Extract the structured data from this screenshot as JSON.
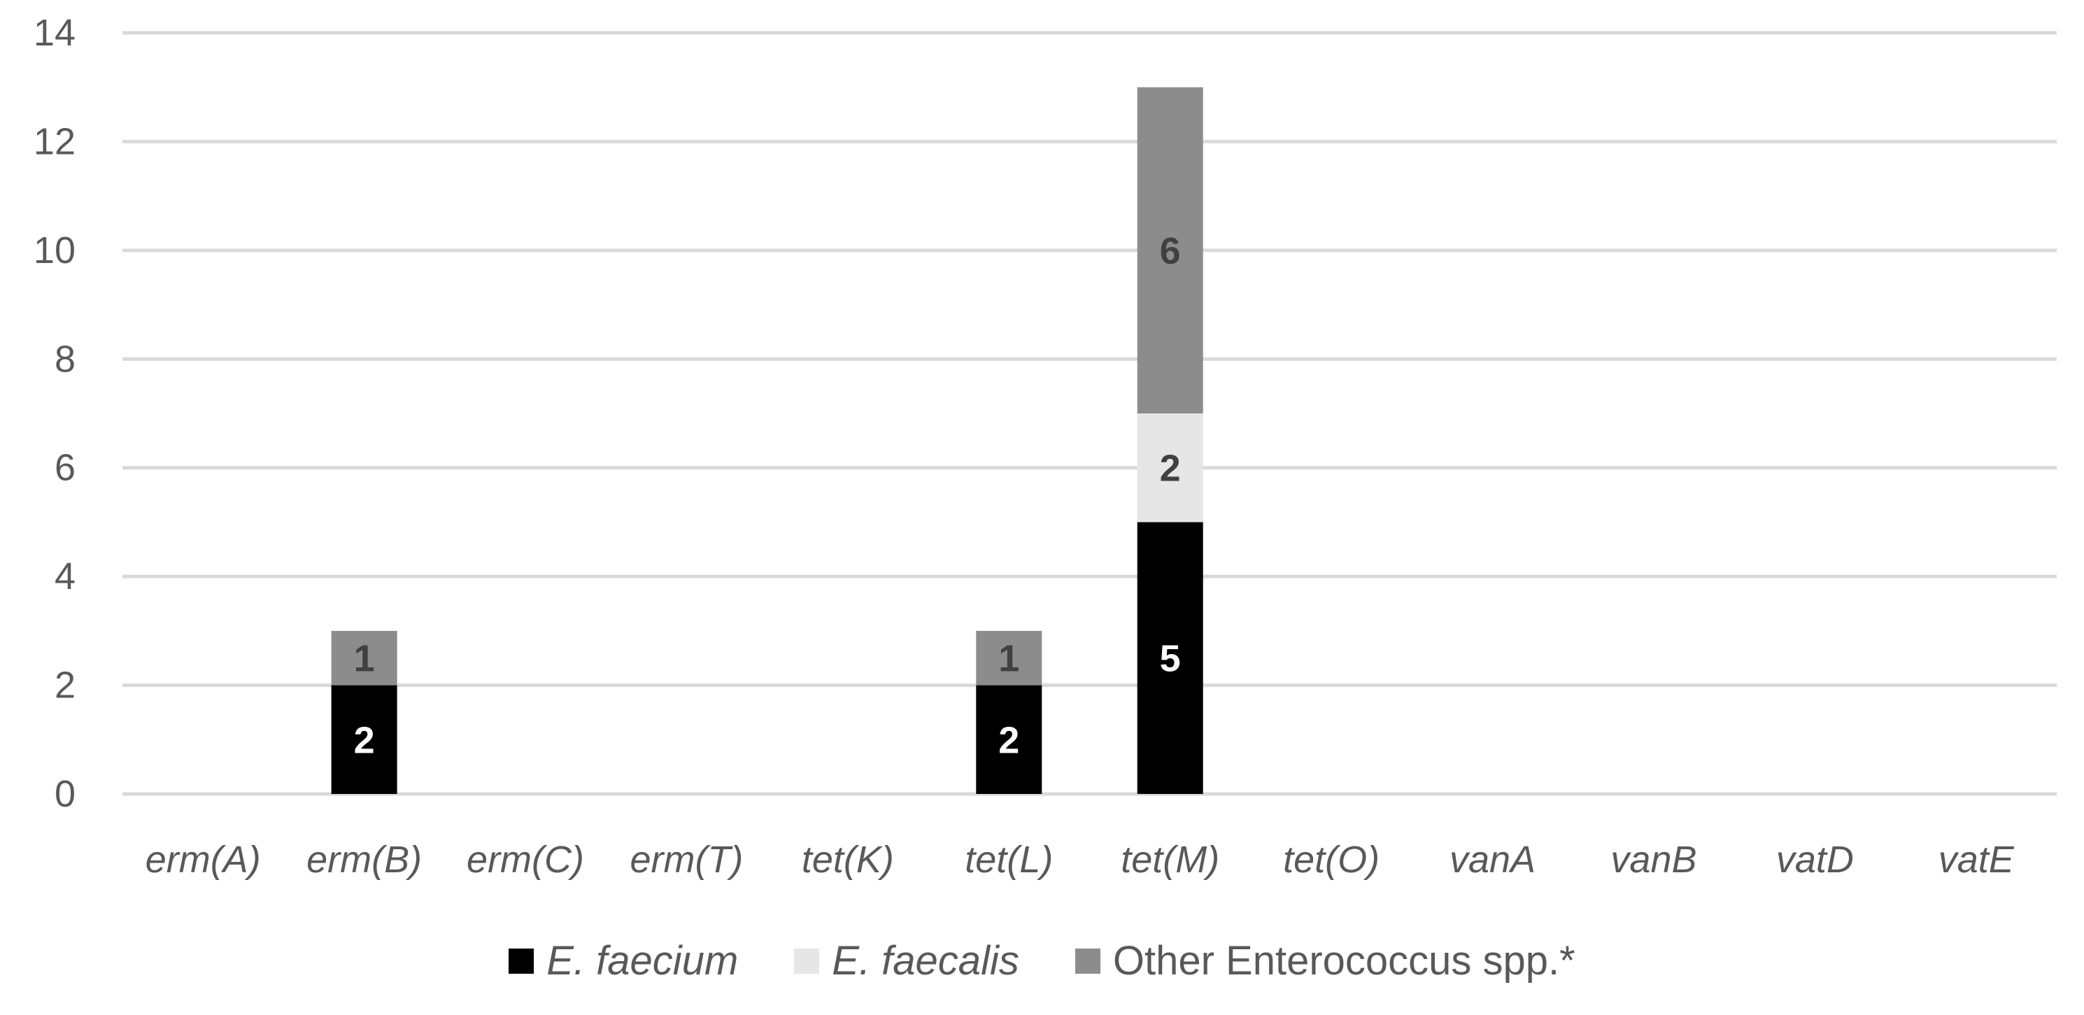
{
  "chart_data": {
    "type": "bar",
    "stacked": true,
    "categories": [
      "erm(A)",
      "erm(B)",
      "erm(C)",
      "erm(T)",
      "tet(K)",
      "tet(L)",
      "tet(M)",
      "tet(O)",
      "vanA",
      "vanB",
      "vatD",
      "vatE"
    ],
    "series": [
      {
        "name": "E. faecium",
        "color": "#000000",
        "label_color": "#ffffff",
        "values": [
          0,
          2,
          0,
          0,
          0,
          2,
          5,
          0,
          0,
          0,
          0,
          0
        ]
      },
      {
        "name": "E. faecalis",
        "color": "#e6e6e6",
        "label_color": "#404040",
        "values": [
          0,
          0,
          0,
          0,
          0,
          0,
          2,
          0,
          0,
          0,
          0,
          0
        ]
      },
      {
        "name": "Other Enterococcus spp.*",
        "color": "#8c8c8c",
        "label_color": "#404040",
        "values": [
          0,
          1,
          0,
          0,
          0,
          1,
          6,
          0,
          0,
          0,
          0,
          0
        ]
      }
    ],
    "ylim": [
      0,
      14
    ],
    "yticks": [
      "0",
      "2",
      "4",
      "6",
      "8",
      "10",
      "12",
      "14"
    ],
    "grid": true,
    "legend_position": "bottom",
    "title": "",
    "xlabel": "",
    "ylabel": ""
  }
}
